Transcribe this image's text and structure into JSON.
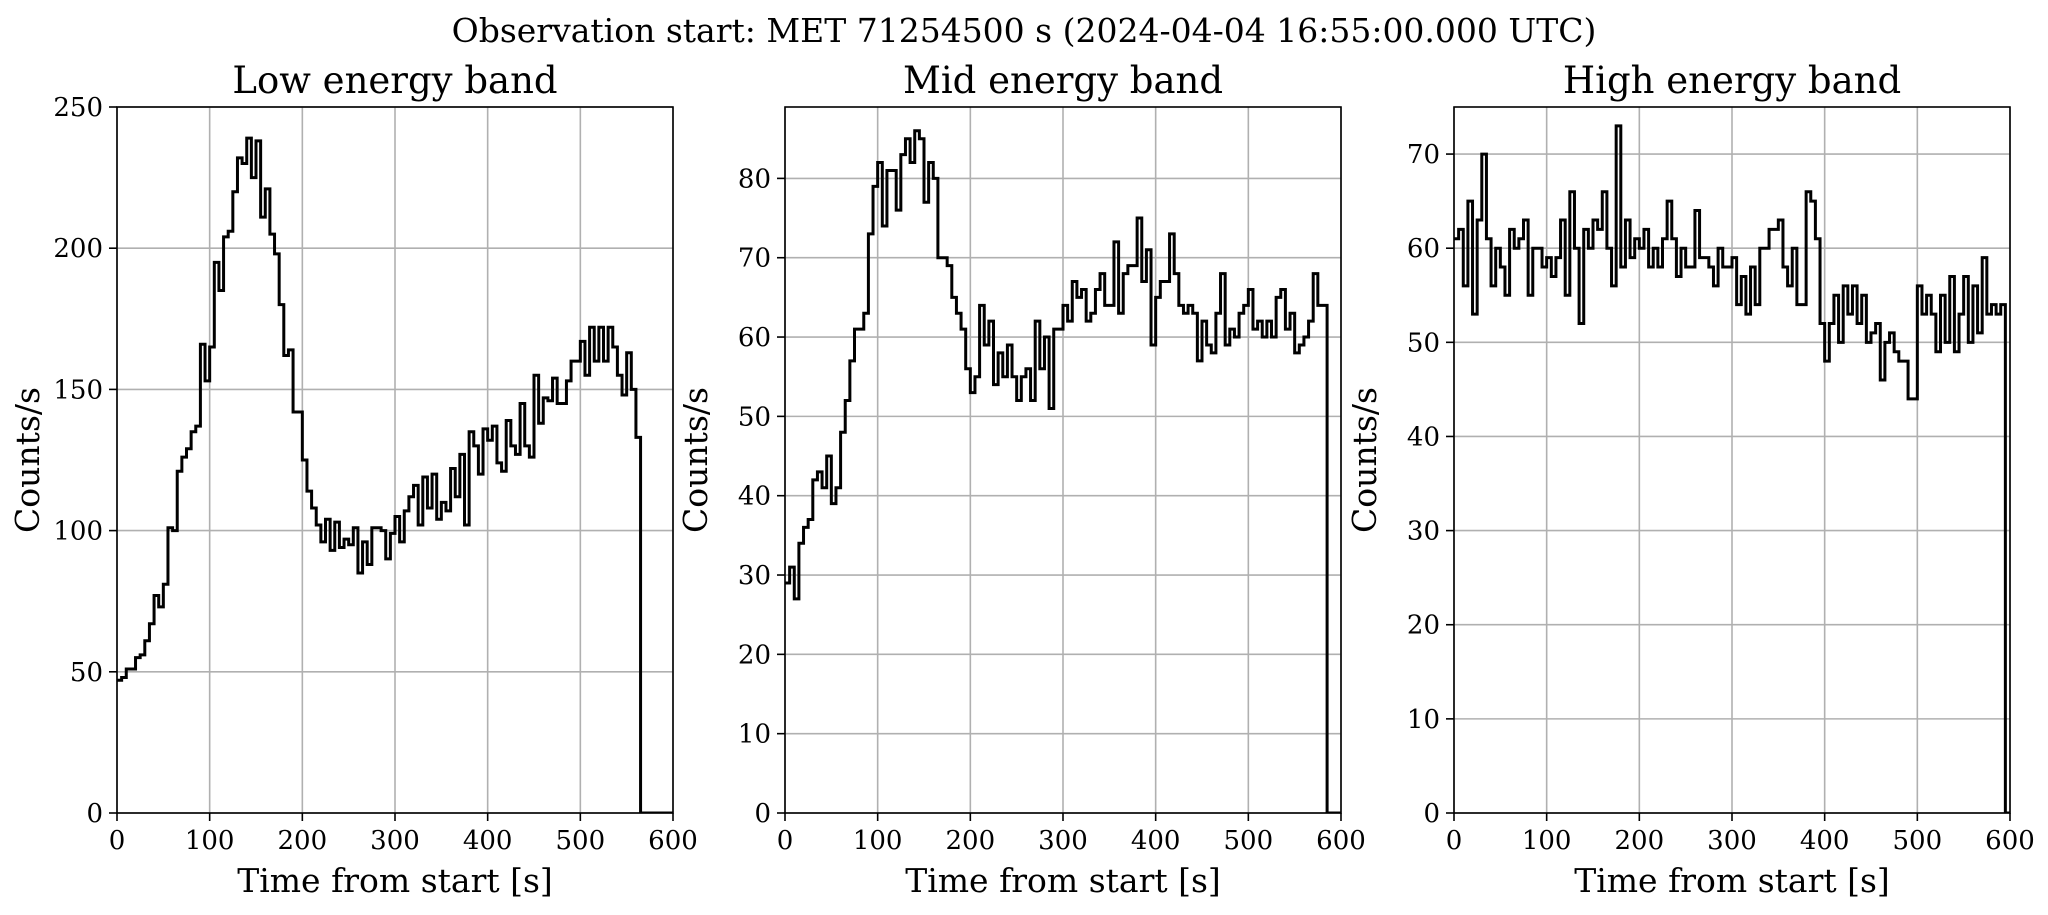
{
  "figure": {
    "suptitle": "Observation start: MET 71254500 s (2024-04-04 16:55:00.000 UTC)"
  },
  "chart_data": [
    {
      "type": "line",
      "drawstyle": "steps-post",
      "title": "Low energy band",
      "xlabel": "Time from start [s]",
      "ylabel": "Counts/s",
      "xlim": [
        0,
        600
      ],
      "ylim": [
        0,
        250
      ],
      "xticks": [
        0,
        100,
        200,
        300,
        400,
        500,
        600
      ],
      "yticks": [
        0,
        50,
        100,
        150,
        200,
        250
      ],
      "grid": true,
      "series": [
        {
          "bin_width": 5,
          "x": [
            0,
            5,
            10,
            15,
            20,
            25,
            30,
            35,
            40,
            45,
            50,
            55,
            60,
            65,
            70,
            75,
            80,
            85,
            90,
            95,
            100,
            105,
            110,
            115,
            120,
            125,
            130,
            135,
            140,
            145,
            150,
            155,
            160,
            165,
            170,
            175,
            180,
            185,
            190,
            195,
            200,
            205,
            210,
            215,
            220,
            225,
            230,
            235,
            240,
            245,
            250,
            255,
            260,
            265,
            270,
            275,
            280,
            285,
            290,
            295,
            300,
            305,
            310,
            315,
            320,
            325,
            330,
            335,
            340,
            345,
            350,
            355,
            360,
            365,
            370,
            375,
            380,
            385,
            390,
            395,
            400,
            405,
            410,
            415,
            420,
            425,
            430,
            435,
            440,
            445,
            450,
            455,
            460,
            465,
            470,
            475,
            480,
            485,
            490,
            495,
            500,
            505,
            510,
            515,
            520,
            525,
            530,
            535,
            540,
            545,
            550,
            555,
            560,
            565,
            570,
            575,
            580,
            585,
            590,
            595
          ],
          "y": [
            47,
            48,
            51,
            51,
            55,
            56,
            61,
            67,
            77,
            73,
            81,
            101,
            100,
            121,
            126,
            129,
            135,
            137,
            166,
            153,
            165,
            195,
            185,
            204,
            206,
            220,
            232,
            230,
            239,
            225,
            238,
            211,
            221,
            205,
            198,
            180,
            162,
            164,
            142,
            142,
            125,
            114,
            108,
            102,
            96,
            104,
            93,
            103,
            94,
            97,
            95,
            101,
            85,
            96,
            88,
            101,
            101,
            100,
            90,
            99,
            105,
            96,
            107,
            112,
            116,
            102,
            119,
            108,
            120,
            104,
            110,
            107,
            122,
            112,
            127,
            102,
            135,
            130,
            120,
            136,
            132,
            137,
            124,
            121,
            139,
            130,
            127,
            145,
            130,
            126,
            155,
            138,
            147,
            146,
            154,
            145,
            145,
            153,
            160,
            160,
            167,
            155,
            172,
            160,
            172,
            160,
            172,
            165,
            155,
            148,
            163,
            150,
            133,
            0,
            0,
            0,
            0,
            0,
            0,
            0
          ]
        }
      ]
    },
    {
      "type": "line",
      "drawstyle": "steps-post",
      "title": "Mid energy band",
      "xlabel": "Time from start [s]",
      "ylabel": "Counts/s",
      "xlim": [
        0,
        600
      ],
      "ylim": [
        0,
        89
      ],
      "xticks": [
        0,
        100,
        200,
        300,
        400,
        500,
        600
      ],
      "yticks": [
        0,
        10,
        20,
        30,
        40,
        50,
        60,
        70,
        80
      ],
      "grid": true,
      "series": [
        {
          "bin_width": 5,
          "x": [
            0,
            5,
            10,
            15,
            20,
            25,
            30,
            35,
            40,
            45,
            50,
            55,
            60,
            65,
            70,
            75,
            80,
            85,
            90,
            95,
            100,
            105,
            110,
            115,
            120,
            125,
            130,
            135,
            140,
            145,
            150,
            155,
            160,
            165,
            170,
            175,
            180,
            185,
            190,
            195,
            200,
            205,
            210,
            215,
            220,
            225,
            230,
            235,
            240,
            245,
            250,
            255,
            260,
            265,
            270,
            275,
            280,
            285,
            290,
            295,
            300,
            305,
            310,
            315,
            320,
            325,
            330,
            335,
            340,
            345,
            350,
            355,
            360,
            365,
            370,
            375,
            380,
            385,
            390,
            395,
            400,
            405,
            410,
            415,
            420,
            425,
            430,
            435,
            440,
            445,
            450,
            455,
            460,
            465,
            470,
            475,
            480,
            485,
            490,
            495,
            500,
            505,
            510,
            515,
            520,
            525,
            530,
            535,
            540,
            545,
            550,
            555,
            560,
            565,
            570,
            575,
            580,
            585,
            590,
            595
          ],
          "y": [
            29,
            31,
            27,
            34,
            36,
            37,
            42,
            43,
            41,
            45,
            39,
            41,
            48,
            52,
            57,
            61,
            61,
            63,
            73,
            79,
            82,
            74,
            81,
            81,
            76,
            83,
            85,
            82,
            86,
            85,
            77,
            82,
            80,
            70,
            70,
            69,
            65,
            63,
            61,
            56,
            53,
            55,
            64,
            59,
            62,
            54,
            58,
            55,
            59,
            55,
            52,
            55,
            56,
            52,
            62,
            56,
            60,
            51,
            61,
            61,
            64,
            62,
            67,
            65,
            66,
            62,
            63,
            66,
            68,
            64,
            64,
            72,
            63,
            68,
            69,
            69,
            75,
            67,
            71,
            59,
            65,
            67,
            67,
            73,
            68,
            64,
            63,
            64,
            63,
            57,
            62,
            59,
            58,
            63,
            68,
            59,
            61,
            60,
            63,
            64,
            66,
            61,
            62,
            60,
            62,
            60,
            65,
            66,
            61,
            63,
            58,
            59,
            60,
            62,
            68,
            64,
            64,
            0,
            0,
            0
          ]
        }
      ]
    },
    {
      "type": "line",
      "drawstyle": "steps-post",
      "title": "High energy band",
      "xlabel": "Time from start [s]",
      "ylabel": "Counts/s",
      "xlim": [
        0,
        600
      ],
      "ylim": [
        0,
        75
      ],
      "xticks": [
        0,
        100,
        200,
        300,
        400,
        500,
        600
      ],
      "yticks": [
        0,
        10,
        20,
        30,
        40,
        50,
        60,
        70
      ],
      "grid": true,
      "series": [
        {
          "bin_width": 5,
          "x": [
            0,
            5,
            10,
            15,
            20,
            25,
            30,
            35,
            40,
            45,
            50,
            55,
            60,
            65,
            70,
            75,
            80,
            85,
            90,
            95,
            100,
            105,
            110,
            115,
            120,
            125,
            130,
            135,
            140,
            145,
            150,
            155,
            160,
            165,
            170,
            175,
            180,
            185,
            190,
            195,
            200,
            205,
            210,
            215,
            220,
            225,
            230,
            235,
            240,
            245,
            250,
            255,
            260,
            265,
            270,
            275,
            280,
            285,
            290,
            295,
            300,
            305,
            310,
            315,
            320,
            325,
            330,
            335,
            340,
            345,
            350,
            355,
            360,
            365,
            370,
            375,
            380,
            385,
            390,
            395,
            400,
            405,
            410,
            415,
            420,
            425,
            430,
            435,
            440,
            445,
            450,
            455,
            460,
            465,
            470,
            475,
            480,
            485,
            490,
            495,
            500,
            505,
            510,
            515,
            520,
            525,
            530,
            535,
            540,
            545,
            550,
            555,
            560,
            565,
            570,
            575,
            580,
            585,
            590,
            595
          ],
          "y": [
            61,
            62,
            56,
            65,
            53,
            63,
            70,
            61,
            56,
            60,
            58,
            55,
            62,
            60,
            61,
            63,
            55,
            60,
            60,
            58,
            59,
            57,
            59,
            63,
            55,
            66,
            60,
            52,
            62,
            60,
            63,
            62,
            66,
            60,
            56,
            73,
            58,
            63,
            59,
            61,
            60,
            62,
            58,
            60,
            58,
            61,
            65,
            61,
            57,
            60,
            58,
            58,
            64,
            59,
            59,
            58,
            56,
            60,
            58,
            58,
            59,
            54,
            57,
            53,
            58,
            54,
            60,
            60,
            62,
            62,
            63,
            58,
            56,
            60,
            54,
            54,
            66,
            65,
            61,
            52,
            48,
            52,
            55,
            50,
            56,
            53,
            56,
            52,
            55,
            50,
            51,
            52,
            46,
            50,
            51,
            49,
            48,
            48,
            44,
            44,
            56,
            53,
            55,
            53,
            49,
            55,
            50,
            57,
            49,
            53,
            57,
            50,
            56,
            51,
            59,
            53,
            54,
            53,
            54,
            0
          ]
        }
      ]
    }
  ]
}
